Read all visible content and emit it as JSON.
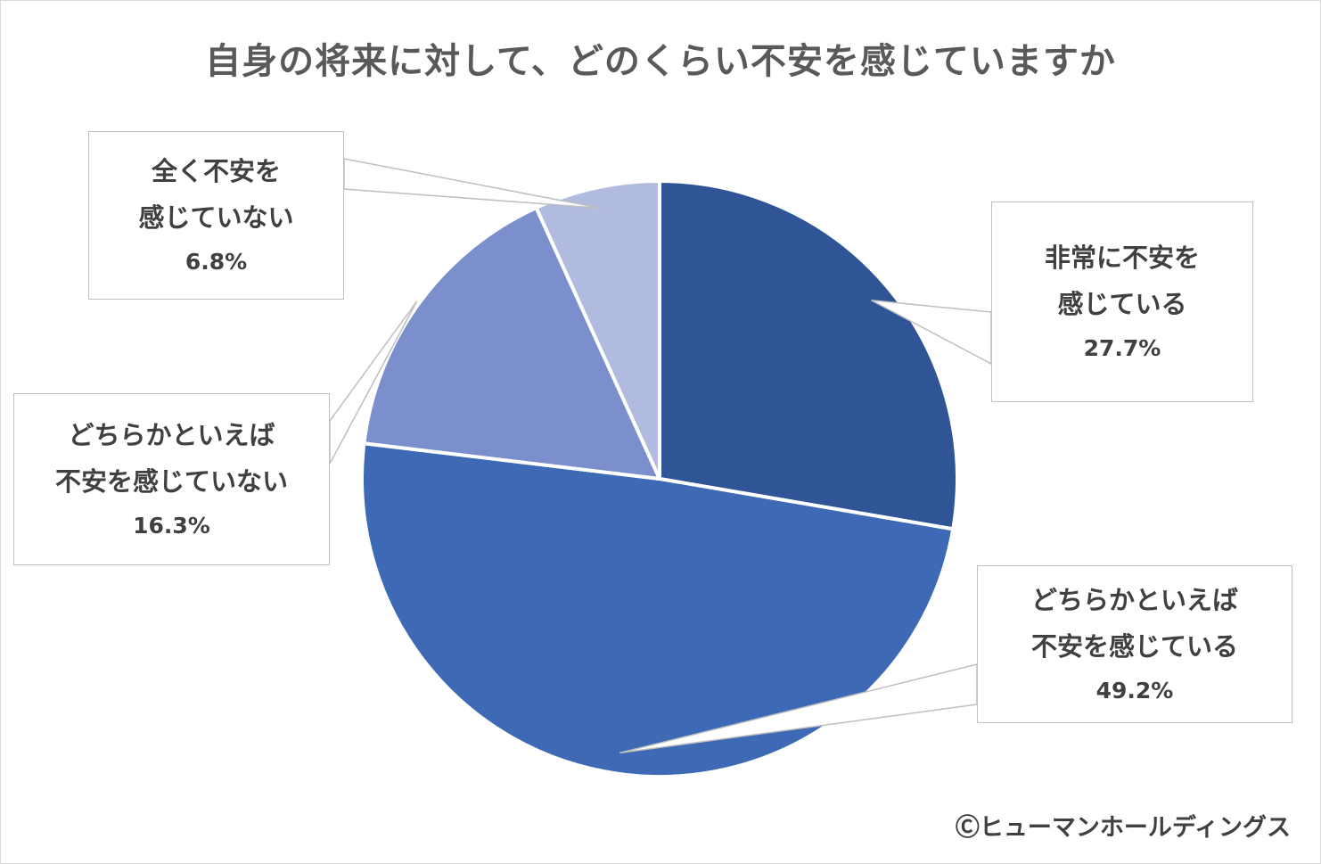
{
  "colors": {
    "slice1": "#2f5597",
    "slice2": "#3e69b5",
    "slice3": "#7a8fcc",
    "slice4": "#b0bbdf",
    "leader": "#bfbfbf"
  },
  "chart_data": {
    "type": "pie",
    "title": "自身の将来に対して、どのくらい不安を感じていますか",
    "start": "12 o'clock",
    "direction": "clockwise",
    "slices": [
      {
        "label_lines": [
          "非常に不安を",
          "感じている"
        ],
        "value": 27.7,
        "value_label": "27.7%"
      },
      {
        "label_lines": [
          "どちらかといえば",
          "不安を感じている"
        ],
        "value": 49.2,
        "value_label": "49.2%"
      },
      {
        "label_lines": [
          "どちらかといえば",
          "不安を感じていない"
        ],
        "value": 16.3,
        "value_label": "16.3%"
      },
      {
        "label_lines": [
          "全く不安を",
          "感じていない"
        ],
        "value": 6.8,
        "value_label": "6.8%"
      }
    ]
  },
  "footer": {
    "copyright": "Ⓒヒューマンホールディングス"
  }
}
